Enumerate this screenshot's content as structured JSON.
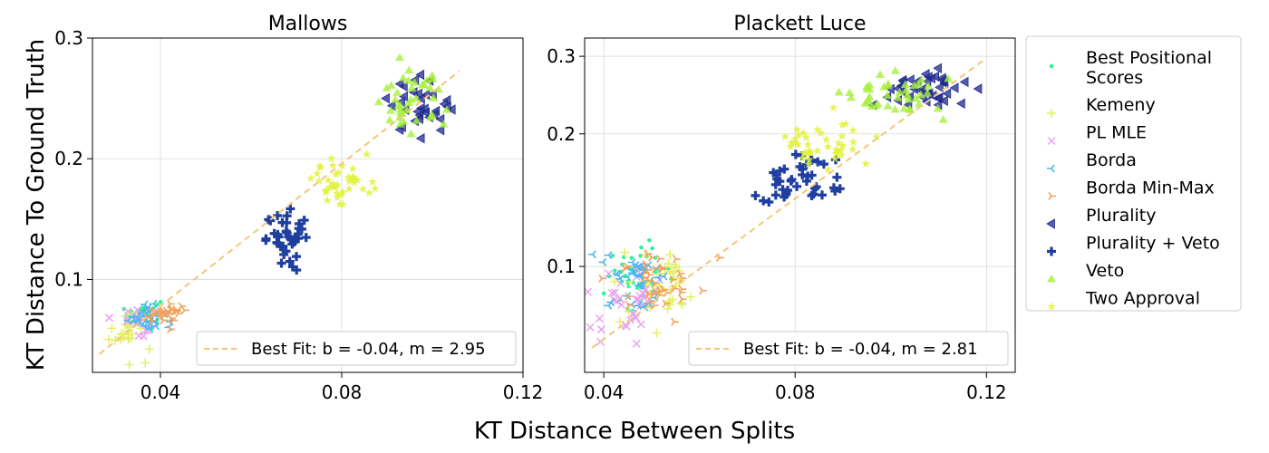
{
  "figure": {
    "xlabel": "KT Distance Between Splits",
    "ylabel": "KT Distance To Ground Truth"
  },
  "legend": {
    "entries": [
      {
        "label": "Best Positional\nScores",
        "marker": "dot",
        "color": "#2af598"
      },
      {
        "label": "Kemeny",
        "marker": "plus-thin",
        "color": "#e2f05a"
      },
      {
        "label": "PL MLE",
        "marker": "x",
        "color": "#e9a3f0"
      },
      {
        "label": "Borda",
        "marker": "tri-left",
        "color": "#48b6f0"
      },
      {
        "label": "Borda Min-Max",
        "marker": "tri-right",
        "color": "#f2a05a"
      },
      {
        "label": "Plurality",
        "marker": "triangle-left",
        "color": "#1f2a8f"
      },
      {
        "label": "Plurality + Veto",
        "marker": "plus-thick",
        "color": "#1f3ea0"
      },
      {
        "label": "Veto",
        "marker": "triangle-up",
        "color": "#a6f03a"
      },
      {
        "label": "Two Approval",
        "marker": "star",
        "color": "#e0f23a"
      }
    ]
  },
  "chart_data": [
    {
      "type": "scatter",
      "title": "Mallows",
      "xlabel": "KT Distance Between Splits",
      "ylabel": "KT Distance To Ground Truth",
      "xlim": [
        0.025,
        0.12
      ],
      "ylim": [
        0.023,
        0.3
      ],
      "xticks": [
        0.04,
        0.08,
        0.12
      ],
      "xticklabels": [
        "0.04",
        "0.08",
        "0.12"
      ],
      "yticks": [
        0.1,
        0.2,
        0.3
      ],
      "yticklabels": [
        "0.1",
        "0.2",
        "0.3"
      ],
      "grid": true,
      "fit": {
        "label": "Best Fit: b = -0.04, m = 2.95",
        "b": -0.04,
        "m": 2.95,
        "x_range": [
          0.0265,
          0.106
        ]
      },
      "clusters": [
        {
          "series": "Best Positional Scores",
          "cx": 0.0365,
          "cy": 0.072,
          "sx": 0.0018,
          "sy": 0.006,
          "n": 30
        },
        {
          "series": "Kemeny",
          "cx": 0.033,
          "cy": 0.058,
          "sx": 0.0025,
          "sy": 0.01,
          "n": 26
        },
        {
          "series": "PL MLE",
          "cx": 0.035,
          "cy": 0.066,
          "sx": 0.0018,
          "sy": 0.006,
          "n": 22
        },
        {
          "series": "Borda",
          "cx": 0.037,
          "cy": 0.07,
          "sx": 0.002,
          "sy": 0.006,
          "n": 30
        },
        {
          "series": "Borda Min-Max",
          "cx": 0.041,
          "cy": 0.071,
          "sx": 0.0025,
          "sy": 0.004,
          "n": 30
        },
        {
          "series": "Plurality",
          "cx": 0.097,
          "cy": 0.245,
          "sx": 0.0035,
          "sy": 0.011,
          "n": 34
        },
        {
          "series": "Plurality + Veto",
          "cx": 0.069,
          "cy": 0.133,
          "sx": 0.0028,
          "sy": 0.011,
          "n": 38
        },
        {
          "series": "Veto",
          "cx": 0.095,
          "cy": 0.248,
          "sx": 0.004,
          "sy": 0.012,
          "n": 40
        },
        {
          "series": "Two Approval",
          "cx": 0.08,
          "cy": 0.18,
          "sx": 0.0032,
          "sy": 0.011,
          "n": 40
        }
      ]
    },
    {
      "type": "scatter",
      "title": "Plackett Luce",
      "xlabel": "KT Distance Between Splits",
      "ylabel": "",
      "yscale": "log",
      "xlim": [
        0.036,
        0.126
      ],
      "ylim": [
        0.0575,
        0.33
      ],
      "xticks": [
        0.04,
        0.08,
        0.12
      ],
      "xticklabels": [
        "0.04",
        "0.08",
        "0.12"
      ],
      "yticks": [
        0.1,
        0.2,
        0.3
      ],
      "yticklabels": [
        "0.1",
        "0.2",
        "0.3"
      ],
      "grid": true,
      "fit": {
        "label": "Best Fit: b = -0.04, m = 2.81",
        "b": -0.04,
        "m": 2.81,
        "x_range": [
          0.0375,
          0.12
        ]
      },
      "clusters": [
        {
          "series": "Best Positional Scores",
          "cx": 0.0475,
          "cy": 0.096,
          "sx": 0.0035,
          "sy": 0.008,
          "n": 40
        },
        {
          "series": "Kemeny",
          "cx": 0.052,
          "cy": 0.09,
          "sx": 0.004,
          "sy": 0.008,
          "n": 40
        },
        {
          "series": "PL MLE",
          "cx": 0.045,
          "cy": 0.085,
          "sx": 0.0035,
          "sy": 0.009,
          "n": 40
        },
        {
          "series": "Borda",
          "cx": 0.047,
          "cy": 0.094,
          "sx": 0.0035,
          "sy": 0.007,
          "n": 36
        },
        {
          "series": "Borda Min-Max",
          "cx": 0.052,
          "cy": 0.093,
          "sx": 0.004,
          "sy": 0.007,
          "n": 40
        },
        {
          "series": "Plurality",
          "cx": 0.106,
          "cy": 0.255,
          "sx": 0.005,
          "sy": 0.015,
          "n": 42
        },
        {
          "series": "Plurality + Veto",
          "cx": 0.08,
          "cy": 0.155,
          "sx": 0.0045,
          "sy": 0.012,
          "n": 42
        },
        {
          "series": "Veto",
          "cx": 0.1,
          "cy": 0.245,
          "sx": 0.0055,
          "sy": 0.014,
          "n": 42
        },
        {
          "series": "Two Approval",
          "cx": 0.085,
          "cy": 0.19,
          "sx": 0.005,
          "sy": 0.012,
          "n": 42
        }
      ]
    }
  ]
}
